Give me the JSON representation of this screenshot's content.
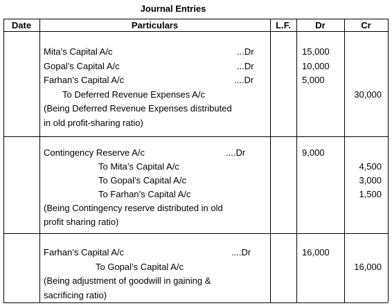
{
  "title": "Journal Entries",
  "table": {
    "headers": [
      "Date",
      "Particulars",
      "L.F.",
      "Dr",
      "Cr"
    ],
    "entries": [
      {
        "lines": [
          {
            "text": "Mita’s Capital A/c",
            "mark": "...Dr",
            "dr": "15,000"
          },
          {
            "text": "Gopal’s Capital A/c",
            "mark": "...Dr",
            "dr": "10,000"
          },
          {
            "text": "Farhan’s Capital A/c",
            "mark": "....Dr",
            "dr": "5,000"
          },
          {
            "text": "To Deferred Revenue Expenses A/c",
            "cr": "30,000"
          },
          {
            "text": "(Being Deferred Revenue Expenses distributed"
          },
          {
            "text": "in old profit-sharing ratio)"
          }
        ]
      },
      {
        "lines": [
          {
            "text": "Contingency Reserve A/c",
            "mark": "....Dr",
            "dr": "9,000"
          },
          {
            "text": "To Mita’s Capital A/c",
            "cr": "4,500"
          },
          {
            "text": "To Gopal’s Capital A/c",
            "cr": "3,000"
          },
          {
            "text": "To Farhan’s Capital A/c",
            "cr": "1,500"
          },
          {
            "text": "(Being Contingency reserve distributed in old"
          },
          {
            "text": "profit sharing ratio)"
          }
        ]
      },
      {
        "lines": [
          {
            "text": "Farhan’s Capital A/c",
            "mark": "....Dr",
            "dr": "16,000"
          },
          {
            "text": "To Gopal’s Capital A/c",
            "cr": "16,000"
          },
          {
            "text": "(Being adjustment of goodwill in gaining &"
          },
          {
            "text": "sacrificing ratio)"
          }
        ]
      }
    ]
  }
}
